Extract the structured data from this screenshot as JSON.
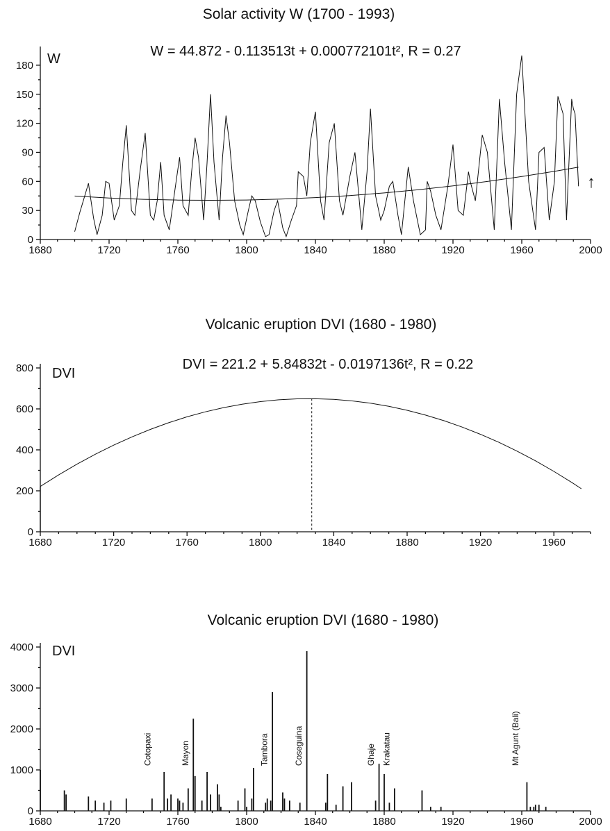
{
  "chart_data": [
    {
      "type": "line",
      "title": "Solar activity  W (1700 - 1993)",
      "equation": "W = 44.872 - 0.113513t + 0.000772101t², R = 0.27",
      "ylabel": "W",
      "xlim": [
        1680,
        2000
      ],
      "ylim": [
        0,
        195
      ],
      "xticks": [
        1680,
        1720,
        1760,
        1800,
        1840,
        1880,
        1920,
        1960,
        2000
      ],
      "yticks": [
        0,
        30,
        60,
        90,
        120,
        150,
        180
      ],
      "arrow": "↑",
      "series": [
        {
          "role": "data",
          "x": [
            1700,
            1703,
            1705,
            1708,
            1711,
            1713,
            1716,
            1718,
            1720,
            1723,
            1726,
            1728,
            1730,
            1733,
            1735,
            1738,
            1741,
            1744,
            1746,
            1748,
            1750,
            1752,
            1755,
            1757,
            1759,
            1761,
            1763,
            1766,
            1768,
            1770,
            1772,
            1775,
            1777,
            1779,
            1781,
            1784,
            1786,
            1788,
            1790,
            1793,
            1796,
            1798,
            1801,
            1803,
            1805,
            1808,
            1811,
            1813,
            1816,
            1818,
            1821,
            1823,
            1826,
            1829,
            1830,
            1833,
            1835,
            1837,
            1840,
            1843,
            1845,
            1848,
            1851,
            1854,
            1856,
            1860,
            1863,
            1866,
            1867,
            1870,
            1872,
            1875,
            1878,
            1880,
            1883,
            1885,
            1888,
            1890,
            1894,
            1897,
            1901,
            1904,
            1905,
            1907,
            1910,
            1913,
            1917,
            1920,
            1923,
            1926,
            1929,
            1930,
            1933,
            1937,
            1940,
            1944,
            1947,
            1950,
            1954,
            1957,
            1960,
            1964,
            1968,
            1970,
            1973,
            1976,
            1979,
            1981,
            1984,
            1986,
            1989,
            1990,
            1991,
            1993
          ],
          "y": [
            8,
            28,
            40,
            58,
            22,
            5,
            25,
            60,
            58,
            20,
            35,
            80,
            118,
            30,
            25,
            70,
            110,
            25,
            20,
            40,
            80,
            25,
            10,
            35,
            60,
            85,
            35,
            25,
            70,
            105,
            85,
            20,
            80,
            150,
            80,
            20,
            85,
            128,
            100,
            40,
            15,
            5,
            30,
            45,
            40,
            18,
            3,
            5,
            30,
            40,
            12,
            3,
            20,
            35,
            70,
            65,
            45,
            100,
            132,
            40,
            20,
            100,
            120,
            40,
            25,
            65,
            90,
            30,
            10,
            70,
            135,
            45,
            20,
            30,
            55,
            60,
            25,
            5,
            75,
            40,
            5,
            10,
            60,
            50,
            25,
            10,
            55,
            98,
            30,
            25,
            70,
            60,
            40,
            108,
            90,
            10,
            145,
            80,
            10,
            150,
            190,
            60,
            10,
            90,
            95,
            20,
            60,
            148,
            130,
            20,
            145,
            135,
            130,
            55
          ]
        },
        {
          "role": "fit",
          "x": [
            1700,
            1720,
            1740,
            1760,
            1780,
            1800,
            1820,
            1840,
            1860,
            1880,
            1900,
            1920,
            1940,
            1960,
            1980,
            1993
          ],
          "y": [
            44.9,
            42.9,
            41.5,
            40.7,
            40.5,
            40.8,
            41.7,
            43.3,
            45.4,
            48.1,
            51.4,
            55.4,
            59.9,
            65.0,
            70.7,
            74.7
          ]
        }
      ]
    },
    {
      "type": "line",
      "title": "Volcanic eruption DVI  (1680 - 1980)",
      "equation": "DVI = 221.2 + 5.84832t - 0.0197136t², R = 0.22",
      "ylabel": "DVI",
      "xlim": [
        1680,
        1980
      ],
      "ylim": [
        0,
        800
      ],
      "xticks": [
        1680,
        1720,
        1760,
        1800,
        1840,
        1880,
        1920,
        1960
      ],
      "yticks": [
        0,
        200,
        400,
        600,
        800
      ],
      "series": [
        {
          "role": "fit",
          "x": [
            1680,
            1690,
            1700,
            1710,
            1720,
            1730,
            1740,
            1750,
            1760,
            1770,
            1780,
            1790,
            1800,
            1810,
            1820,
            1830,
            1840,
            1850,
            1860,
            1870,
            1880,
            1890,
            1900,
            1910,
            1920,
            1930,
            1940,
            1950,
            1960,
            1970,
            1975
          ],
          "y": [
            221.2,
            277.6,
            330.0,
            378.5,
            423.0,
            463.5,
            500.0,
            532.6,
            561.2,
            585.8,
            606.4,
            623.0,
            635.7,
            644.3,
            649.0,
            649.6,
            646.3,
            639.0,
            627.7,
            612.4,
            593.1,
            569.8,
            542.6,
            511.3,
            476.0,
            436.8,
            393.5,
            346.3,
            295.0,
            239.8,
            210.0
          ]
        }
      ],
      "vline": {
        "x": 1828,
        "y": 650
      }
    },
    {
      "type": "bar",
      "title": "Volcanic eruption DVI (1680 - 1980)",
      "ylabel": "DVI",
      "xlim": [
        1680,
        2000
      ],
      "ylim": [
        0,
        4000
      ],
      "xticks": [
        1680,
        1720,
        1760,
        1800,
        1840,
        1880,
        1920,
        1960,
        2000
      ],
      "yticks": [
        0,
        1000,
        2000,
        3000,
        4000
      ],
      "x": [
        1680,
        1694,
        1695,
        1708,
        1712,
        1717,
        1721,
        1730,
        1745,
        1752,
        1754,
        1756,
        1760,
        1761,
        1763,
        1766,
        1769,
        1770,
        1774,
        1777,
        1779,
        1783,
        1784,
        1785,
        1795,
        1799,
        1800,
        1803,
        1804,
        1811,
        1812,
        1814,
        1815,
        1821,
        1822,
        1825,
        1831,
        1835,
        1846,
        1847,
        1852,
        1856,
        1861,
        1875,
        1877,
        1880,
        1883,
        1886,
        1902,
        1907,
        1913,
        1963,
        1965,
        1967,
        1968,
        1970,
        1974
      ],
      "values": [
        1000,
        500,
        400,
        350,
        250,
        200,
        250,
        300,
        300,
        950,
        300,
        400,
        300,
        250,
        200,
        550,
        2250,
        850,
        250,
        950,
        400,
        650,
        400,
        100,
        250,
        550,
        100,
        300,
        1050,
        200,
        300,
        250,
        2900,
        450,
        300,
        250,
        200,
        3900,
        200,
        900,
        150,
        600,
        700,
        250,
        1150,
        900,
        200,
        550,
        500,
        100,
        100,
        700,
        100,
        100,
        150,
        150,
        100
      ],
      "annotations": [
        {
          "label": "Cotopaxi",
          "x": 1744,
          "y": 1100
        },
        {
          "label": "Mayon",
          "x": 1766,
          "y": 1100
        },
        {
          "label": "Tambora",
          "x": 1812,
          "y": 1100
        },
        {
          "label": "Coseguina",
          "x": 1832,
          "y": 1100
        },
        {
          "label": "Ghaje",
          "x": 1874,
          "y": 1100
        },
        {
          "label": "Krakatau",
          "x": 1883,
          "y": 1100
        },
        {
          "label": "Mt Agunt (Bali)",
          "x": 1958,
          "y": 1100
        }
      ]
    }
  ]
}
